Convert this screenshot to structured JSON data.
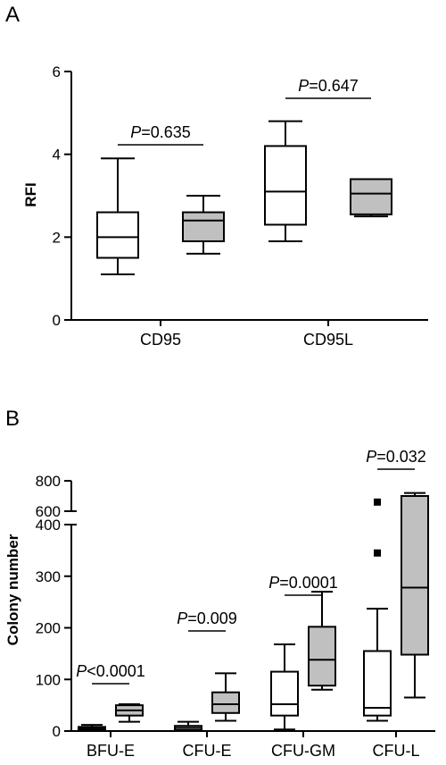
{
  "chart_data": [
    {
      "type": "box",
      "panel_label": "A",
      "ylabel": "RFI",
      "ylim": [
        0,
        6
      ],
      "yticks": [
        "0",
        "2",
        "4",
        "6"
      ],
      "categories": [
        "CD95",
        "CD95L"
      ],
      "series": [
        {
          "fill": "#ffffff",
          "boxes": [
            {
              "category": "CD95",
              "min": 1.1,
              "q1": 1.5,
              "median": 2.0,
              "q3": 2.6,
              "max": 3.9
            },
            {
              "category": "CD95L",
              "min": 1.9,
              "q1": 2.3,
              "median": 3.1,
              "q3": 4.2,
              "max": 4.8
            }
          ]
        },
        {
          "fill": "#c0c0c0",
          "boxes": [
            {
              "category": "CD95",
              "min": 1.6,
              "q1": 1.9,
              "median": 2.4,
              "q3": 2.6,
              "max": 3.0
            },
            {
              "category": "CD95L",
              "min": 2.5,
              "q1": 2.55,
              "median": 3.05,
              "q3": 3.4,
              "max": 3.4
            }
          ]
        }
      ],
      "annotations": [
        {
          "category": "CD95",
          "p_symbol": "P",
          "p_rest": "=0.635"
        },
        {
          "category": "CD95L",
          "p_symbol": "P",
          "p_rest": "=0.647"
        }
      ]
    },
    {
      "type": "box",
      "panel_label": "B",
      "ylabel": "Colony number",
      "ylim": [
        0,
        800
      ],
      "axis_break": [
        400,
        600
      ],
      "yticks": [
        "0",
        "100",
        "200",
        "300",
        "400",
        "600",
        "800"
      ],
      "categories": [
        "BFU-E",
        "CFU-E",
        "CFU-GM",
        "CFU-L"
      ],
      "series": [
        {
          "fill": "#ffffff",
          "boxes": [
            {
              "category": "BFU-E",
              "min": 0,
              "q1": 2,
              "median": 5,
              "q3": 8,
              "max": 12
            },
            {
              "category": "CFU-E",
              "min": 0,
              "q1": 2,
              "median": 6,
              "q3": 10,
              "max": 18
            },
            {
              "category": "CFU-GM",
              "min": 3,
              "q1": 30,
              "median": 52,
              "q3": 115,
              "max": 168
            },
            {
              "category": "CFU-L",
              "min": 20,
              "q1": 30,
              "median": 45,
              "q3": 155,
              "max": 237
            }
          ],
          "outliers": [
            {
              "category": "CFU-L",
              "value": 345
            },
            {
              "category": "CFU-L",
              "value": 660
            }
          ]
        },
        {
          "fill": "#c0c0c0",
          "boxes": [
            {
              "category": "BFU-E",
              "min": 18,
              "q1": 30,
              "median": 40,
              "q3": 50,
              "max": 52
            },
            {
              "category": "CFU-E",
              "min": 20,
              "q1": 35,
              "median": 52,
              "q3": 75,
              "max": 112
            },
            {
              "category": "CFU-GM",
              "min": 80,
              "q1": 88,
              "median": 138,
              "q3": 202,
              "max": 270
            },
            {
              "category": "CFU-L",
              "min": 65,
              "q1": 148,
              "median": 278,
              "q3": 700,
              "max": 720
            }
          ]
        }
      ],
      "annotations": [
        {
          "category": "BFU-E",
          "p_symbol": "P",
          "p_rest": "<0.0001"
        },
        {
          "category": "CFU-E",
          "p_symbol": "P",
          "p_rest": "=0.009"
        },
        {
          "category": "CFU-GM",
          "p_symbol": "P",
          "p_rest": "=0.0001"
        },
        {
          "category": "CFU-L",
          "p_symbol": "P",
          "p_rest": "=0.032"
        }
      ]
    }
  ]
}
